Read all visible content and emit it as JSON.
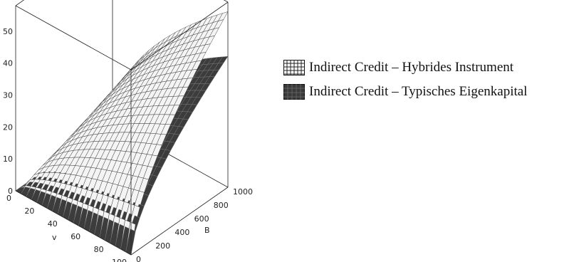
{
  "chart_data": {
    "type": "surface3d",
    "title": "",
    "axes": {
      "x": {
        "label": "v",
        "range": [
          0,
          100
        ],
        "ticks": [
          "0",
          "20",
          "40",
          "60",
          "80",
          "100"
        ]
      },
      "y": {
        "label": "B",
        "range": [
          0,
          1000
        ],
        "ticks": [
          "0",
          "200",
          "400",
          "600",
          "800",
          "1000"
        ]
      },
      "z": {
        "label": "",
        "range": [
          0,
          58
        ],
        "ticks": [
          "0",
          "10",
          "20",
          "30",
          "40",
          "50"
        ]
      }
    },
    "legend": {
      "placement": "right"
    },
    "series": [
      {
        "name": "Indirect Credit – Hybrides Instrument",
        "pattern": "grid",
        "color": "#9a9a9a",
        "v": [
          0,
          100
        ],
        "B": [
          0,
          1000
        ],
        "z_at_corners": {
          "v0_B0": 0,
          "v100_B0": 0,
          "v0_B1000": 0,
          "v100_B1000": 55
        }
      },
      {
        "name": "Indirect Credit – Typisches Eigenkapital",
        "pattern": "solid",
        "color": "#3c3c3c",
        "v": [
          0,
          100
        ],
        "B": [
          0,
          1000
        ],
        "z_at_corners": {
          "v0_B0": 0,
          "v100_B0": 0,
          "v0_B1000": 0,
          "v100_B1000": 41
        }
      }
    ],
    "grid": false
  }
}
